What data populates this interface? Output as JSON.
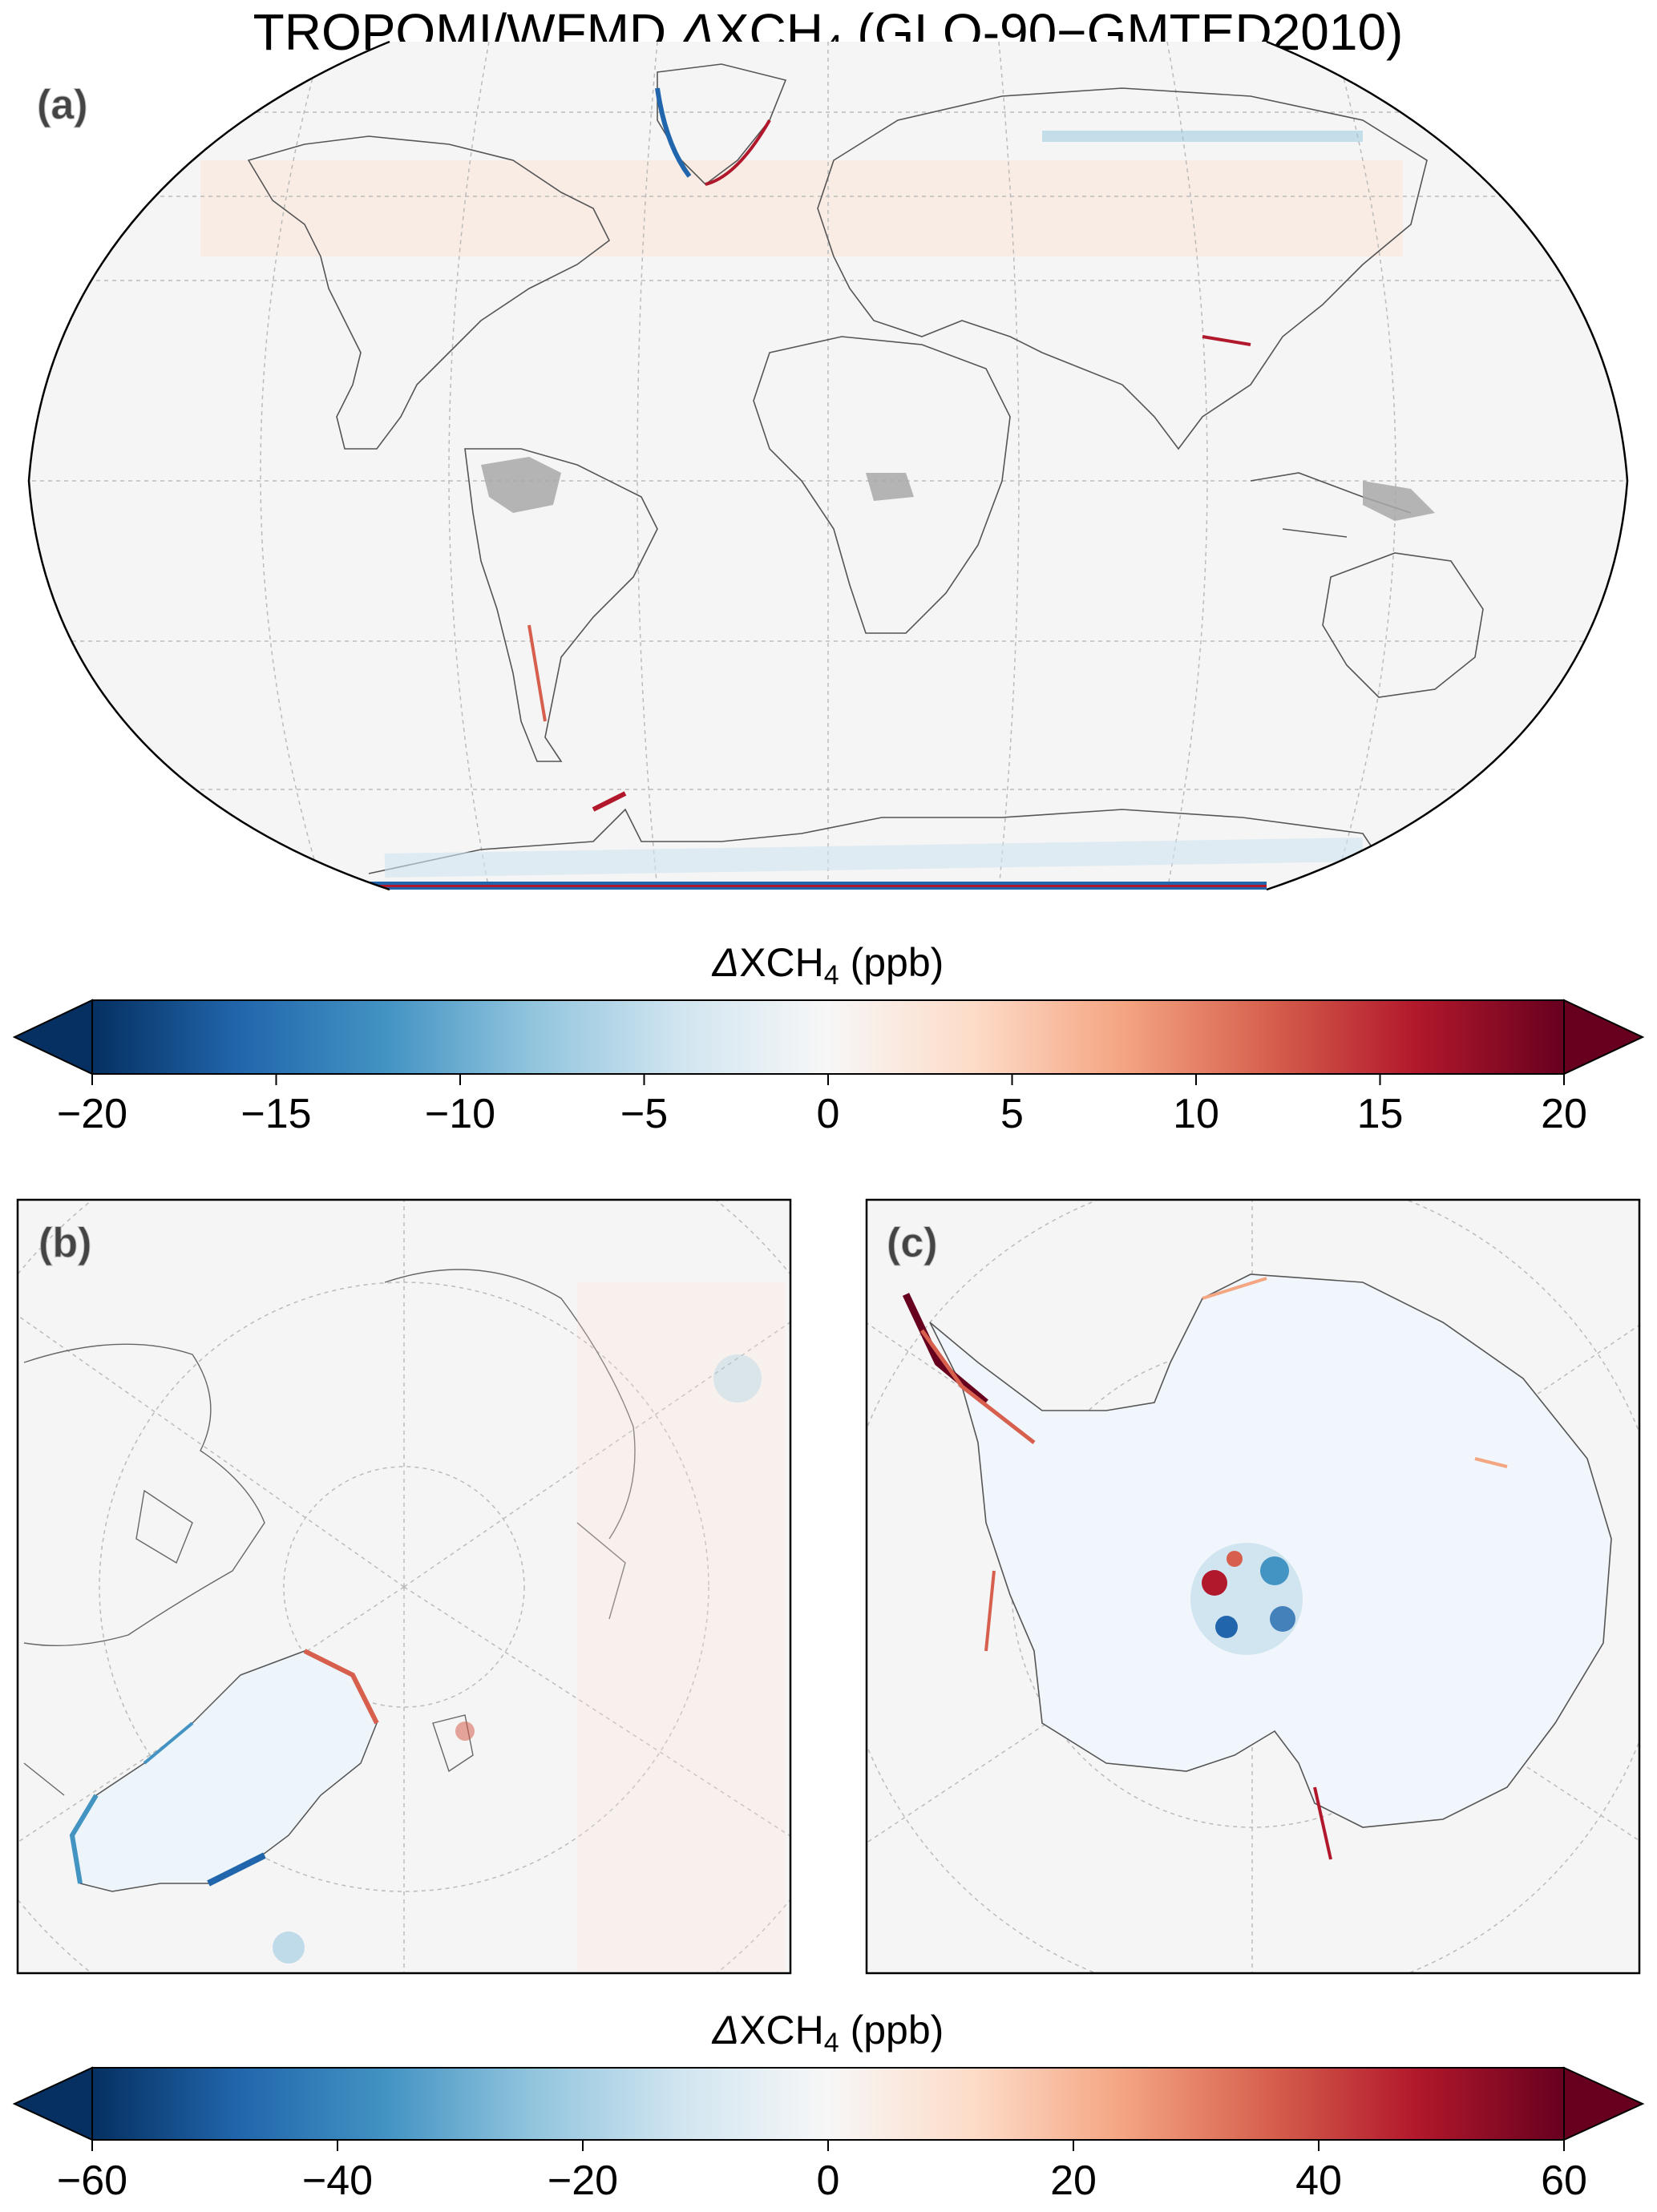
{
  "title": {
    "main": "TROPOMI/WFMD ",
    "delta": "Δ",
    "xch": "XCH",
    "sub": "4",
    "rest": " (GLO-90−GMTED2010)"
  },
  "panels": {
    "a": {
      "label": "(a)",
      "projection": "Robinson (global)"
    },
    "b": {
      "label": "(b)",
      "projection": "North polar stereographic"
    },
    "c": {
      "label": "(c)",
      "projection": "South polar stereographic"
    }
  },
  "colorbars": [
    {
      "label_delta": "Δ",
      "label_xch": "XCH",
      "label_sub": "4",
      "label_unit": " (ppb)",
      "min": -20,
      "max": 20,
      "ticks": [
        {
          "value": -20,
          "text": "−20"
        },
        {
          "value": -15,
          "text": "−15"
        },
        {
          "value": -10,
          "text": "−10"
        },
        {
          "value": -5,
          "text": "−5"
        },
        {
          "value": 0,
          "text": "0"
        },
        {
          "value": 5,
          "text": "5"
        },
        {
          "value": 10,
          "text": "10"
        },
        {
          "value": 15,
          "text": "15"
        },
        {
          "value": 20,
          "text": "20"
        }
      ],
      "extend": "both"
    },
    {
      "label_delta": "Δ",
      "label_xch": "XCH",
      "label_sub": "4",
      "label_unit": " (ppb)",
      "min": -60,
      "max": 60,
      "ticks": [
        {
          "value": -60,
          "text": "−60"
        },
        {
          "value": -40,
          "text": "−40"
        },
        {
          "value": -20,
          "text": "−20"
        },
        {
          "value": 0,
          "text": "0"
        },
        {
          "value": 20,
          "text": "20"
        },
        {
          "value": 40,
          "text": "40"
        },
        {
          "value": 60,
          "text": "60"
        }
      ],
      "extend": "both"
    }
  ],
  "colormap": {
    "name": "RdBu_r",
    "stops": [
      "#053061",
      "#2166ac",
      "#4393c3",
      "#92c5de",
      "#d1e5f0",
      "#f7f7f7",
      "#fddbc7",
      "#f4a582",
      "#d6604d",
      "#b2182b",
      "#67001f"
    ]
  },
  "colors": {
    "map_background": "#f5f5f5",
    "coast": "#555555",
    "grid": "#bbbbbb",
    "no_data": "#a8a8a8"
  }
}
